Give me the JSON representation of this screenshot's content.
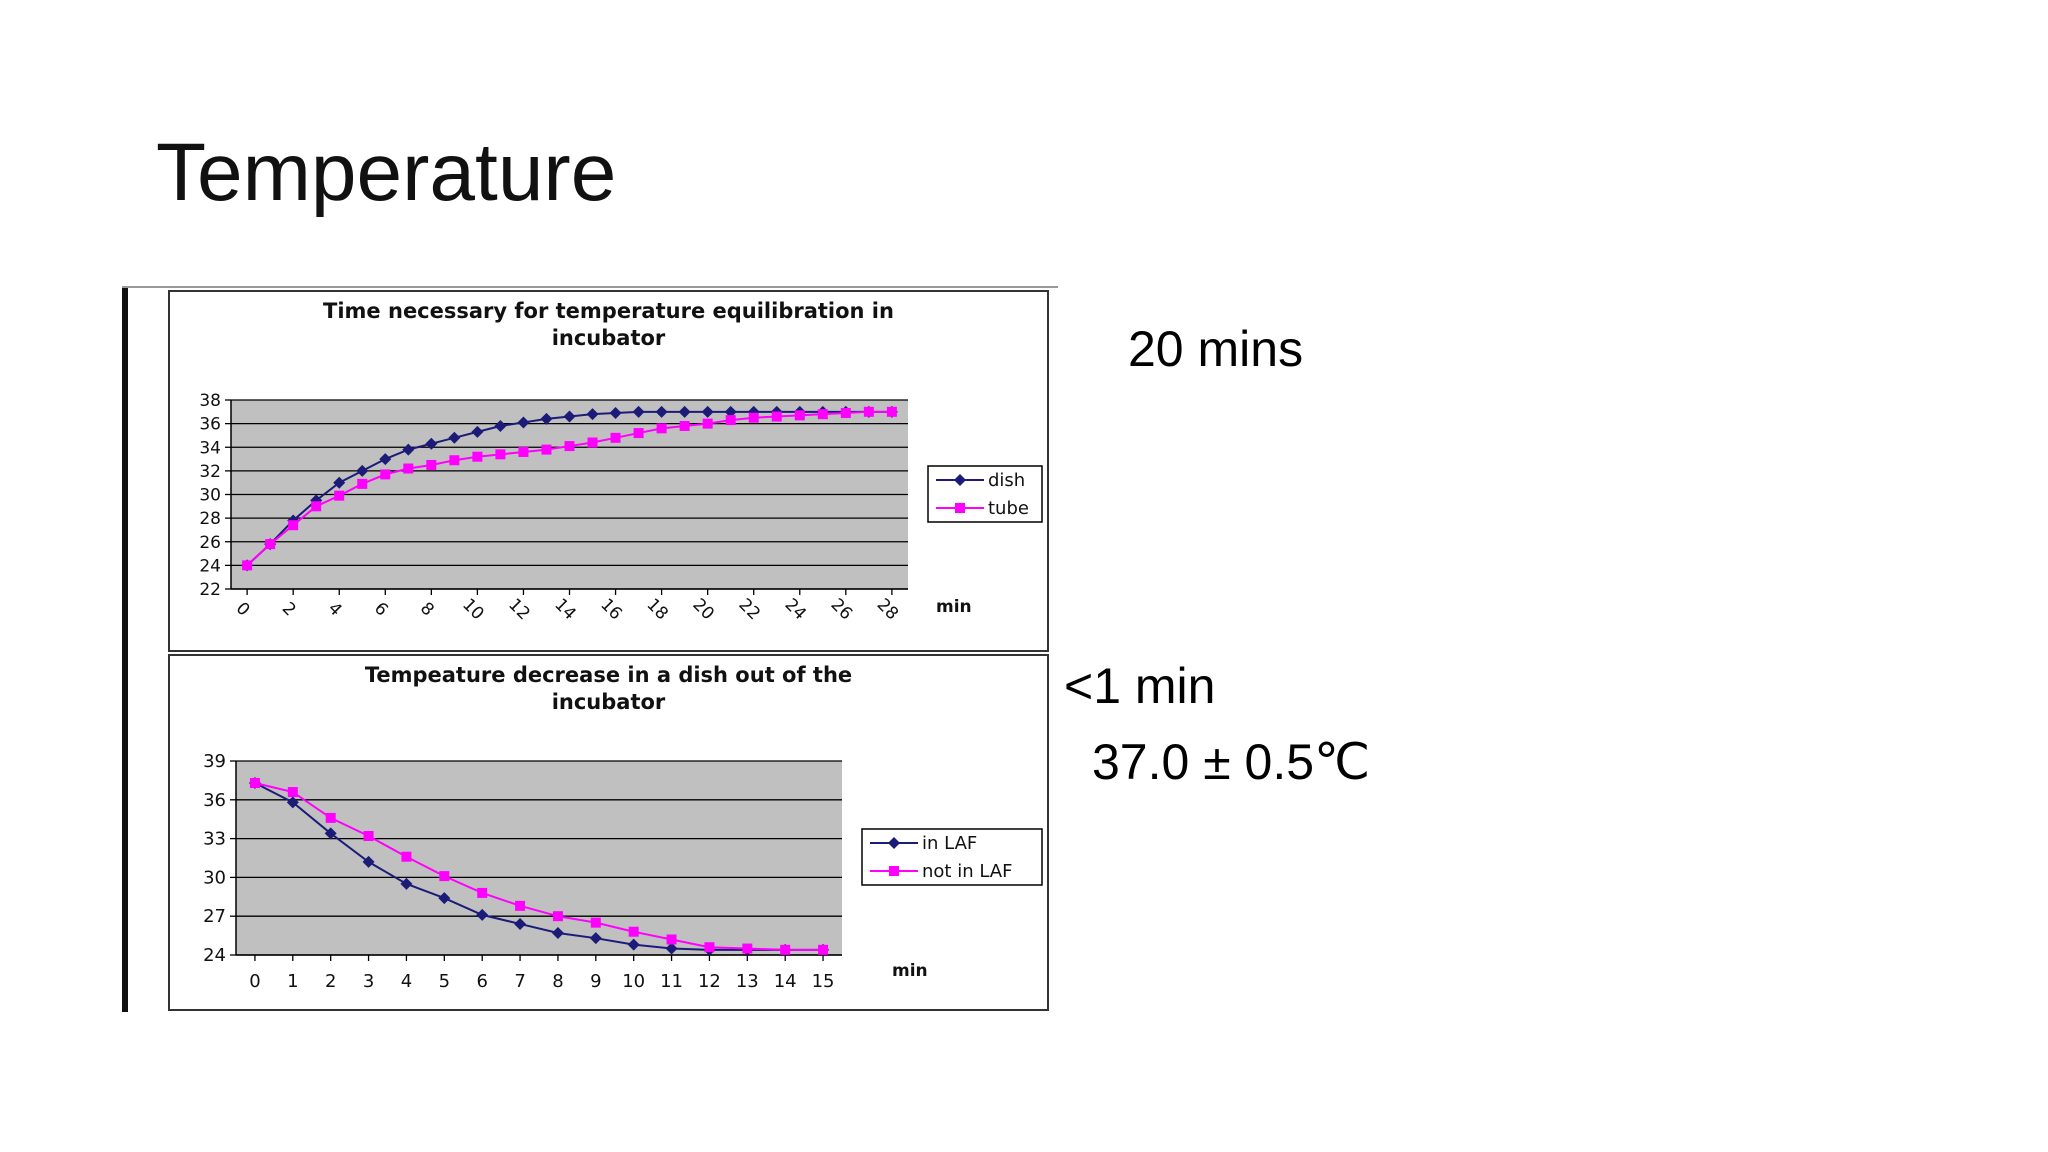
{
  "slide": {
    "title": "Temperature",
    "notes": [
      "20 mins",
      "<1 min",
      "37.0 ± 0.5℃"
    ]
  },
  "chart_data": [
    {
      "type": "line",
      "title": [
        "Time necessary for temperature equilibration in",
        "incubator"
      ],
      "x_label": "min",
      "x": [
        0,
        1,
        2,
        3,
        4,
        5,
        6,
        7,
        8,
        9,
        10,
        11,
        12,
        13,
        14,
        15,
        16,
        17,
        18,
        19,
        20,
        21,
        22,
        23,
        24,
        25,
        26,
        27,
        28
      ],
      "xlim": [
        -0.7,
        28.7
      ],
      "xticks": [
        0,
        2,
        4,
        6,
        8,
        10,
        12,
        14,
        16,
        18,
        20,
        22,
        24,
        26,
        28
      ],
      "ylim": [
        22,
        38
      ],
      "yticks": [
        22,
        24,
        26,
        28,
        30,
        32,
        34,
        36,
        38
      ],
      "grid": true,
      "series": [
        {
          "name": "dish",
          "color": "#1c1c78",
          "marker": "diamond",
          "values": [
            24,
            25.8,
            27.8,
            29.5,
            31,
            32,
            33,
            33.8,
            34.3,
            34.8,
            35.3,
            35.8,
            36.1,
            36.4,
            36.6,
            36.8,
            36.9,
            37,
            37,
            37,
            37,
            37,
            37,
            37,
            37,
            37,
            37,
            37,
            37
          ]
        },
        {
          "name": "tube",
          "color": "#ff00ff",
          "marker": "square",
          "values": [
            24,
            25.8,
            27.4,
            29,
            29.9,
            30.9,
            31.7,
            32.2,
            32.5,
            32.9,
            33.2,
            33.4,
            33.6,
            33.8,
            34.1,
            34.4,
            34.8,
            35.2,
            35.6,
            35.8,
            36,
            36.3,
            36.5,
            36.6,
            36.7,
            36.8,
            36.9,
            37,
            37
          ]
        }
      ]
    },
    {
      "type": "line",
      "title": [
        "Tempeature decrease in a dish out of the",
        "incubator"
      ],
      "x_label": "min",
      "x": [
        0,
        1,
        2,
        3,
        4,
        5,
        6,
        7,
        8,
        9,
        10,
        11,
        12,
        13,
        14,
        15
      ],
      "xlim": [
        -0.5,
        15.5
      ],
      "xticks": [
        0,
        1,
        2,
        3,
        4,
        5,
        6,
        7,
        8,
        9,
        10,
        11,
        12,
        13,
        14,
        15
      ],
      "ylim": [
        24,
        39
      ],
      "yticks": [
        24,
        27,
        30,
        33,
        36,
        39
      ],
      "grid": true,
      "series": [
        {
          "name": "in LAF",
          "color": "#1c1c78",
          "marker": "diamond",
          "values": [
            37.3,
            35.8,
            33.4,
            31.2,
            29.5,
            28.4,
            27.1,
            26.4,
            25.7,
            25.3,
            24.8,
            24.5,
            24.4,
            24.4,
            24.4,
            24.4
          ]
        },
        {
          "name": "not in LAF",
          "color": "#ff00ff",
          "marker": "square",
          "values": [
            37.3,
            36.6,
            34.6,
            33.2,
            31.6,
            30.1,
            28.8,
            27.8,
            27,
            26.5,
            25.8,
            25.2,
            24.6,
            24.5,
            24.4,
            24.4
          ]
        }
      ]
    }
  ]
}
